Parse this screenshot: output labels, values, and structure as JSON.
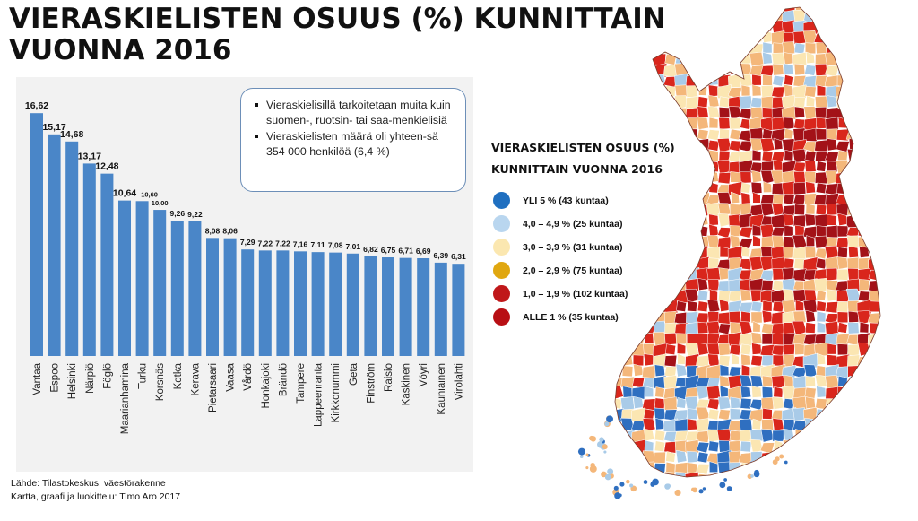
{
  "title_line1": "VIERASKIELISTEN OSUUS (%) KUNNITTAIN",
  "title_line2": "VUONNA 2016",
  "chart_data": {
    "type": "bar",
    "categories": [
      "Vantaa",
      "Espoo",
      "Helsinki",
      "Närpiö",
      "Föglö",
      "Maarianhamina",
      "Turku",
      "Korsnäs",
      "Kotka",
      "Kerava",
      "Pietarsaari",
      "Vaasa",
      "Vårdö",
      "Honkajoki",
      "Brändö",
      "Tampere",
      "Lappeenranta",
      "Kirkkonummi",
      "Geta",
      "Finström",
      "Raisio",
      "Kaskinen",
      "Vöyri",
      "Kauniainen",
      "Virolahti"
    ],
    "values": [
      16.62,
      15.17,
      14.68,
      13.17,
      12.48,
      10.64,
      10.6,
      10.0,
      9.26,
      9.22,
      8.08,
      8.06,
      7.29,
      7.22,
      7.22,
      7.16,
      7.11,
      7.08,
      7.01,
      6.82,
      6.75,
      6.71,
      6.69,
      6.39,
      6.31
    ],
    "value_labels": [
      "16,62",
      "15,17",
      "14,68",
      "13,17",
      "12,48",
      "10,64",
      "10,60",
      "10,00",
      "9,26",
      "9,22",
      "8,08",
      "8,06",
      "7,29",
      "7,22",
      "7,22",
      "7,16",
      "7,11",
      "7,08",
      "7,01",
      "6,82",
      "6,75",
      "6,71",
      "6,69",
      "6,39",
      "6,31"
    ],
    "title": "",
    "xlabel": "",
    "ylabel": "",
    "ylim": [
      0,
      17
    ],
    "grid": false,
    "bar_color": "#4a86c8"
  },
  "note": {
    "item1": "Vieraskielisillä tarkoitetaan muita kuin suomen-, ruotsin- tai saa-menkielisiä",
    "item2": "Vieraskielisten määrä oli yhteen-sä 354 000 henkilöä (6,4 %)"
  },
  "legend": {
    "title_line1": "VIERASKIELISTEN OSUUS (%)",
    "title_line2": "KUNNITTAIN VUONNA 2016",
    "items": [
      {
        "label": "YLI 5 % (43 kuntaa)",
        "color": "#1f6fc0"
      },
      {
        "label": "4,0 – 4,9 % (25 kuntaa)",
        "color": "#b9d6ef"
      },
      {
        "label": "3,0 – 3,9 % (31 kuntaa)",
        "color": "#fbe7b0"
      },
      {
        "label": "2,0 – 2,9 % (75 kuntaa)",
        "color": "#e0a710"
      },
      {
        "label": "1,0 – 1,9 % (102 kuntaa)",
        "color": "#c0181a"
      },
      {
        "label": "ALLE 1 % (35 kuntaa)",
        "color": "#b80f14"
      }
    ]
  },
  "map_colors": {
    "red": "#d9261c",
    "dark_red": "#a31218",
    "orange": "#f4b77a",
    "cream": "#fbe6b2",
    "light_blue": "#a9cbe8",
    "blue": "#2f6fc0"
  },
  "source": {
    "line1": "Lähde: Tilastokeskus, väestörakenne",
    "line2": "Kartta, graafi ja luokittelu: Timo Aro 2017"
  }
}
